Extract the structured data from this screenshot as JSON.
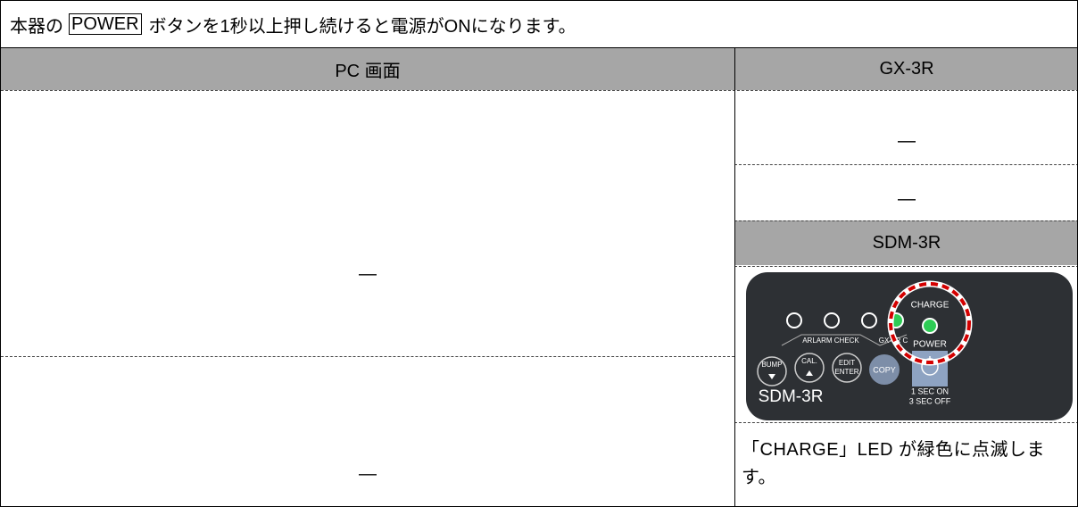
{
  "intro": {
    "before": "本器の",
    "button": "POWER",
    "after": "ボタンを1秒以上押し続けると電源がONになります。"
  },
  "table": {
    "headers": [
      "PC 画面",
      "GX-3R"
    ],
    "pc_cells": [
      "—",
      "—"
    ],
    "gx_cells": [
      "—",
      "—"
    ],
    "sdm_header": "SDM-3R",
    "sdm_note": "「CHARGE」LED が緑色に点滅します。"
  },
  "device_panel": {
    "charge": "CHARGE",
    "power": "POWER",
    "alarm_check": "ARLARM CHECK",
    "gx_charge": "GX-3R C",
    "bump": "BUMP",
    "cal": "CAL.",
    "edit": "EDIT",
    "enter": "ENTER",
    "copy": "COPY",
    "model": "SDM-3R",
    "sec_on": "1 SEC ON",
    "sec_off": "3 SEC OFF"
  }
}
